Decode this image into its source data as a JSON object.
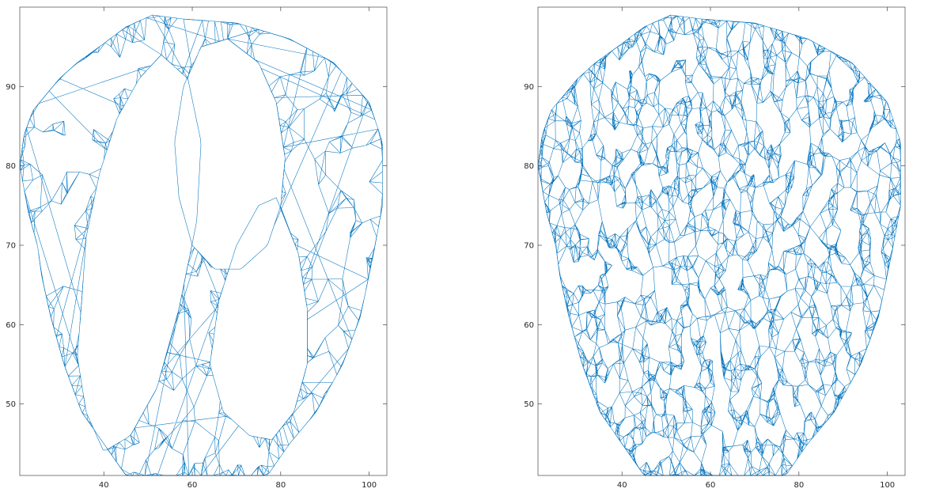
{
  "chart_data": [
    {
      "type": "line",
      "description_free": true,
      "title": "",
      "xlabel": "",
      "ylabel": "",
      "xlim": [
        21,
        104
      ],
      "ylim": [
        41,
        100
      ],
      "xticks": [
        40,
        60,
        80,
        100
      ],
      "yticks": [
        50,
        60,
        70,
        80,
        90
      ],
      "grid": false,
      "color": "#0072BD",
      "series": [
        {
          "role": "outer-boundary",
          "x": [
            51,
            58,
            70,
            82,
            92,
            100,
            103,
            103,
            101,
            98,
            94,
            88,
            82,
            77,
            72,
            68,
            63,
            60,
            55,
            50,
            45,
            40,
            35,
            31,
            28,
            26,
            25,
            23,
            21,
            22,
            24,
            27,
            30,
            34,
            39,
            45
          ],
          "y": [
            99,
            98.5,
            98,
            96,
            93,
            88,
            83,
            75,
            69,
            61,
            55,
            49,
            45,
            41,
            41,
            41,
            41,
            41,
            41,
            41,
            41,
            45,
            49,
            55,
            61,
            66,
            70,
            74,
            80,
            84,
            87,
            89,
            91,
            93,
            95,
            97.5
          ]
        },
        {
          "role": "left-ellipse",
          "x": [
            53,
            59,
            62,
            61,
            57,
            52,
            46,
            40,
            36,
            34,
            35,
            36,
            39,
            43,
            48,
            53
          ],
          "y": [
            94,
            91,
            83,
            73,
            62,
            52,
            46,
            44,
            49,
            56,
            63,
            71,
            79,
            86,
            91,
            94
          ]
        },
        {
          "role": "right-ellipse",
          "x": [
            79,
            84,
            86,
            86,
            83,
            78,
            73,
            67,
            64,
            66,
            70,
            75,
            79
          ],
          "y": [
            76,
            69,
            62,
            55,
            49,
            45.5,
            46,
            49,
            55,
            63,
            70,
            75,
            76
          ]
        },
        {
          "role": "central-ellipse",
          "x": [
            68,
            75,
            79,
            81,
            80,
            77,
            71,
            65,
            60,
            57,
            56,
            58,
            62,
            68
          ],
          "y": [
            96,
            93,
            88,
            81,
            75,
            70,
            67,
            67,
            70,
            76,
            83,
            90,
            95,
            96
          ]
        }
      ]
    },
    {
      "type": "line",
      "title": "",
      "xlabel": "",
      "ylabel": "",
      "xlim": [
        21,
        104
      ],
      "ylim": [
        41,
        100
      ],
      "xticks": [
        40,
        60,
        80,
        100
      ],
      "yticks": [
        50,
        60,
        70,
        80,
        90
      ],
      "grid": false,
      "color": "#0072BD",
      "series": [
        {
          "role": "outer-boundary",
          "x": [
            51,
            58,
            70,
            82,
            92,
            100,
            103,
            103,
            101,
            98,
            94,
            88,
            82,
            77,
            72,
            68,
            63,
            60,
            55,
            50,
            45,
            40,
            35,
            31,
            28,
            26,
            25,
            23,
            21,
            22,
            24,
            27,
            30,
            34,
            39,
            45
          ],
          "y": [
            99,
            98.5,
            98,
            96,
            93,
            88,
            83,
            75,
            69,
            61,
            55,
            49,
            45,
            41,
            41,
            41,
            41,
            41,
            41,
            41,
            41,
            45,
            49,
            55,
            61,
            66,
            70,
            74,
            80,
            84,
            87,
            89,
            91,
            93,
            95,
            97.5
          ]
        }
      ]
    }
  ]
}
